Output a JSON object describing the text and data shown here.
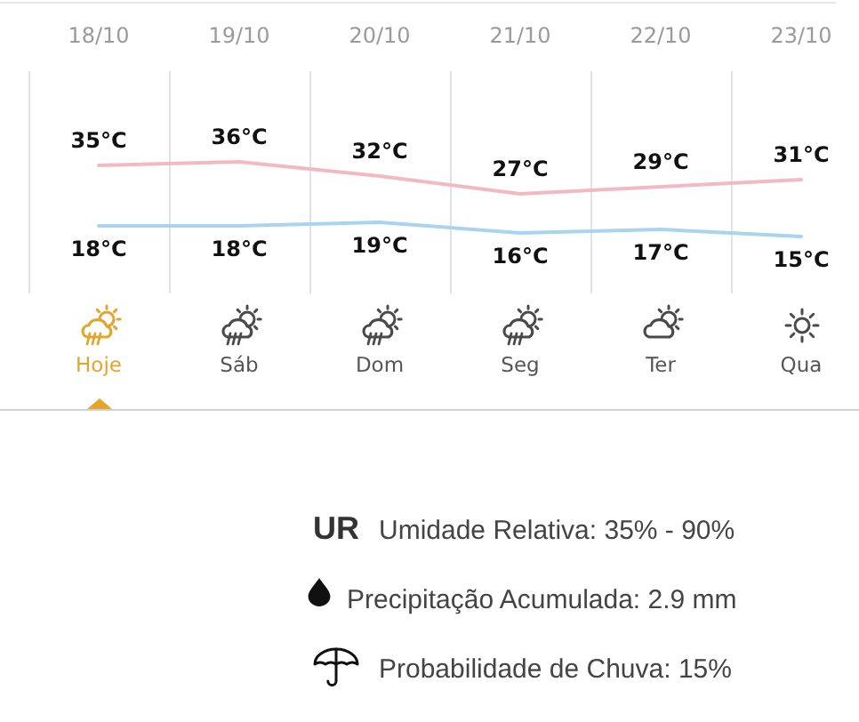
{
  "chart_data": {
    "type": "line",
    "categories": [
      "18/10",
      "19/10",
      "20/10",
      "21/10",
      "22/10",
      "23/10"
    ],
    "series": [
      {
        "color": "#f2b9c3",
        "values": [
          35,
          36,
          32,
          27,
          29,
          31
        ],
        "value_labels": [
          "35°C",
          "36°C",
          "32°C",
          "27°C",
          "29°C",
          "31°C"
        ]
      },
      {
        "color": "#aad3ef",
        "values": [
          18,
          18,
          19,
          16,
          17,
          15
        ],
        "value_labels": [
          "18°C",
          "18°C",
          "19°C",
          "16°C",
          "17°C",
          "15°C"
        ]
      }
    ],
    "annotations": [
      "Hoje",
      "Sáb",
      "Dom",
      "Seg",
      "Ter",
      "Qua",
      "UR",
      "Umidade Relativa: 35% - 90%",
      "Precipitação Acumulada: 2.9 mm",
      "Probabilidade de Chuva: 15%"
    ],
    "grid": "x",
    "tick_labels": "x",
    "marker": "none"
  }
}
